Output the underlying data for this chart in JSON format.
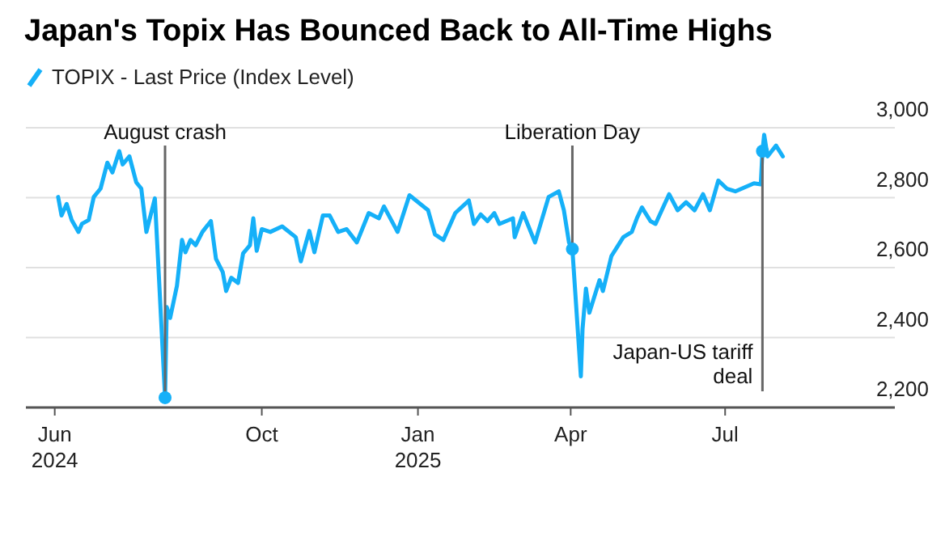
{
  "chart_data": {
    "type": "line",
    "title": "Japan's Topix Has Bounced Back to All-Time Highs",
    "legend": "top left",
    "grid": "y",
    "line_style": "solid",
    "marker": "none",
    "xlim": [
      "2024-05-15",
      "2025-10-09"
    ],
    "xticks": [
      {
        "value": "2024-06-01",
        "label": "Jun 2024"
      },
      {
        "value": "2024-10-01",
        "label": "Oct"
      },
      {
        "value": "2025-01-01",
        "label": "Jan 2025"
      },
      {
        "value": "2025-04-01",
        "label": "Apr"
      },
      {
        "value": "2025-07-01",
        "label": "Jul"
      }
    ],
    "ylim": [
      2200,
      3000
    ],
    "yticks": [
      {
        "value": 2200,
        "label": "2,200"
      },
      {
        "value": 2400,
        "label": "2,400"
      },
      {
        "value": 2600,
        "label": "2,600"
      },
      {
        "value": 2800,
        "label": "2,800"
      },
      {
        "value": 3000,
        "label": "3,000"
      }
    ],
    "x": [
      "2024-06-03",
      "2024-06-05",
      "2024-06-08",
      "2024-06-11",
      "2024-06-15",
      "2024-06-17",
      "2024-06-21",
      "2024-06-24",
      "2024-06-28",
      "2024-07-02",
      "2024-07-05",
      "2024-07-09",
      "2024-07-11",
      "2024-07-15",
      "2024-07-19",
      "2024-07-22",
      "2024-07-25",
      "2024-07-30",
      "2024-08-01",
      "2024-08-05",
      "2024-08-06",
      "2024-08-08",
      "2024-08-12",
      "2024-08-15",
      "2024-08-17",
      "2024-08-20",
      "2024-08-23",
      "2024-08-27",
      "2024-09-01",
      "2024-09-04",
      "2024-09-08",
      "2024-09-10",
      "2024-09-13",
      "2024-09-17",
      "2024-09-20",
      "2024-09-24",
      "2024-09-26",
      "2024-09-28",
      "2024-10-01",
      "2024-10-06",
      "2024-10-13",
      "2024-10-21",
      "2024-10-24",
      "2024-10-29",
      "2024-11-01",
      "2024-11-06",
      "2024-11-10",
      "2024-11-15",
      "2024-11-20",
      "2024-11-26",
      "2024-12-03",
      "2024-12-09",
      "2024-12-12",
      "2024-12-20",
      "2024-12-27",
      "2025-01-07",
      "2025-01-11",
      "2025-01-16",
      "2025-01-23",
      "2025-01-31",
      "2025-02-03",
      "2025-02-07",
      "2025-02-11",
      "2025-02-15",
      "2025-02-18",
      "2025-02-26",
      "2025-02-27",
      "2025-03-04",
      "2025-03-11",
      "2025-03-19",
      "2025-03-25",
      "2025-03-28",
      "2025-03-31",
      "2025-04-02",
      "2025-04-07",
      "2025-04-08",
      "2025-04-10",
      "2025-04-12",
      "2025-04-18",
      "2025-04-20",
      "2025-04-25",
      "2025-05-02",
      "2025-05-07",
      "2025-05-10",
      "2025-05-13",
      "2025-05-18",
      "2025-05-21",
      "2025-05-29",
      "2025-06-03",
      "2025-06-08",
      "2025-06-13",
      "2025-06-18",
      "2025-06-22",
      "2025-06-27",
      "2025-07-02",
      "2025-07-07",
      "2025-07-18",
      "2025-07-22",
      "2025-07-23",
      "2025-07-24",
      "2025-07-26",
      "2025-07-31",
      "2025-08-04"
    ],
    "series": [
      {
        "name": "TOPIX - Last Price (Index Level)",
        "color": "#15b0f8",
        "values": [
          2802,
          2749,
          2782,
          2736,
          2702,
          2725,
          2736,
          2802,
          2826,
          2900,
          2872,
          2933,
          2895,
          2918,
          2844,
          2826,
          2702,
          2798,
          2610,
          2228,
          2487,
          2456,
          2548,
          2679,
          2644,
          2679,
          2664,
          2702,
          2733,
          2625,
          2587,
          2533,
          2571,
          2556,
          2641,
          2664,
          2741,
          2648,
          2710,
          2702,
          2718,
          2687,
          2618,
          2705,
          2644,
          2749,
          2749,
          2702,
          2710,
          2672,
          2756,
          2741,
          2775,
          2702,
          2807,
          2764,
          2695,
          2679,
          2756,
          2792,
          2725,
          2752,
          2733,
          2756,
          2725,
          2741,
          2687,
          2756,
          2672,
          2802,
          2818,
          2764,
          2672,
          2653,
          2289,
          2425,
          2540,
          2471,
          2564,
          2533,
          2633,
          2687,
          2702,
          2741,
          2772,
          2733,
          2725,
          2810,
          2764,
          2787,
          2764,
          2810,
          2764,
          2849,
          2826,
          2818,
          2841,
          2838,
          2933,
          2980,
          2918,
          2949,
          2918
        ]
      }
    ],
    "annotations": [
      {
        "text": "August crash",
        "x": "2024-08-05",
        "y": 2228
      },
      {
        "text": "Liberation Day",
        "x": "2025-04-02",
        "y": 2653
      },
      {
        "text": "Japan-US tariff deal",
        "x": "2025-07-23",
        "y": 2933
      }
    ]
  }
}
